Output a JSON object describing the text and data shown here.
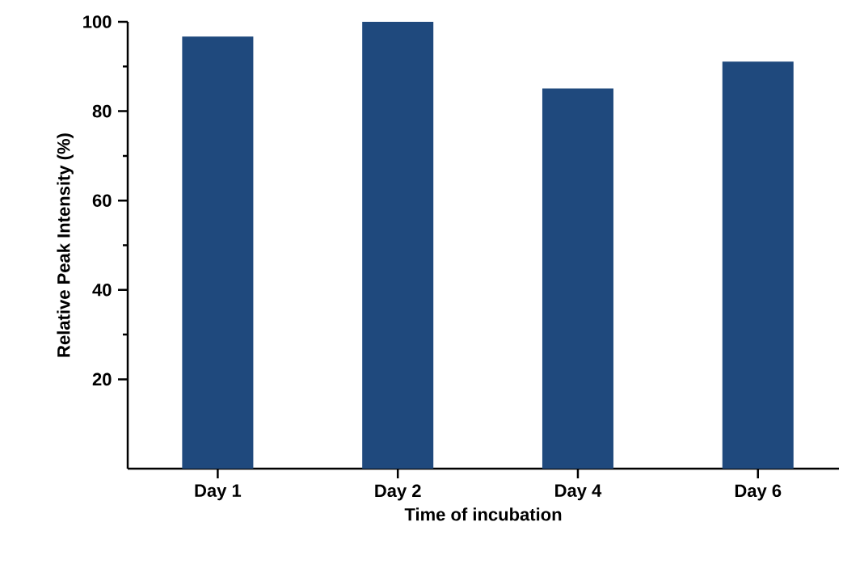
{
  "chart_data": {
    "type": "bar",
    "xlabel": "Time of incubation",
    "ylabel": "Relative Peak Intensity (%)",
    "categories": [
      "Day 1",
      "Day 2",
      "Day 4",
      "Day 6"
    ],
    "values": [
      96.7,
      100,
      85.1,
      91.1
    ],
    "color": "#1f497d",
    "ylim": [
      0,
      100
    ],
    "yticks": [
      20,
      40,
      60,
      80,
      100
    ]
  }
}
